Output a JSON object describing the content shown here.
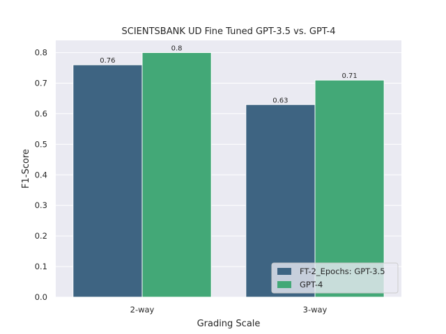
{
  "chart_data": {
    "type": "bar",
    "title": "SCIENTSBANK UD Fine Tuned GPT-3.5 vs. GPT-4",
    "xlabel": "Grading Scale",
    "ylabel": "F1-Score",
    "categories": [
      "2-way",
      "3-way"
    ],
    "series": [
      {
        "name": "FT-2_Epochs: GPT-3.5",
        "values": [
          0.76,
          0.63
        ],
        "color": "#3e6482"
      },
      {
        "name": "GPT-4",
        "values": [
          0.8,
          0.71
        ],
        "color": "#43a877"
      }
    ],
    "data_labels": [
      [
        "0.76",
        "0.63"
      ],
      [
        "0.8",
        "0.71"
      ]
    ],
    "ylim": [
      0,
      0.84
    ],
    "yticks": [
      0.0,
      0.1,
      0.2,
      0.3,
      0.4,
      0.5,
      0.6,
      0.7,
      0.8
    ],
    "ytick_labels": [
      "0.0",
      "0.1",
      "0.2",
      "0.3",
      "0.4",
      "0.5",
      "0.6",
      "0.7",
      "0.8"
    ],
    "grid": true,
    "legend_position": "lower-right",
    "plot_background": "#eaeaf2",
    "grid_color": "#ffffff"
  }
}
